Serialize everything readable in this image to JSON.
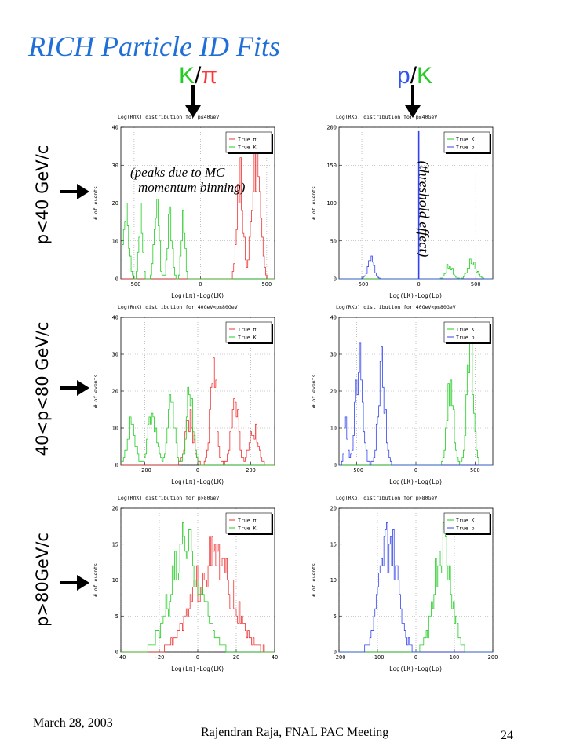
{
  "slide": {
    "title": "RICH Particle ID Fits",
    "col_headers": [
      {
        "a": "K",
        "sep": "/",
        "b": "π",
        "color_a": "#22cc22",
        "color_b": "#ff3333"
      },
      {
        "a": "p",
        "sep": "/",
        "b": "K",
        "color_a": "#3355ee",
        "color_b": "#22cc22"
      }
    ],
    "row_labels": [
      "p<40 GeV/c",
      "40<p<80 GeV/c",
      "p>80GeV/c"
    ],
    "annotations": {
      "peaks_line1": "(peaks due to MC",
      "peaks_line2": "momentum binning)",
      "threshold": "(threshold effect)"
    },
    "footer": {
      "date": "March 28, 2003",
      "author": "Rajendran Raja, FNAL PAC Meeting",
      "page": "24"
    }
  },
  "colors": {
    "pi": "#ee3333",
    "K": "#22cc22",
    "p": "#3344ee",
    "title": "#1f6fd6"
  },
  "chart_data": [
    {
      "type": "area",
      "title": "Log(RπK) distribution for p≤40GeV",
      "xlabel": "Log(Lπ)-Log(LK)",
      "ylabel": "# of events",
      "xlim": [
        -600,
        560
      ],
      "ylim": [
        0,
        40
      ],
      "xticks": [
        -500,
        0,
        500
      ],
      "yticks": [
        0,
        10,
        20,
        30,
        40
      ],
      "legend": "top-right",
      "series": [
        {
          "name": "True π",
          "color": "pi",
          "peaks": [
            [
              300,
              28,
              22
            ],
            [
              420,
              32,
              30
            ]
          ]
        },
        {
          "name": "True K",
          "color": "K",
          "peaks": [
            [
              -560,
              20,
              20
            ],
            [
              -450,
              18,
              14
            ],
            [
              -330,
              22,
              18
            ],
            [
              -230,
              16,
              16
            ],
            [
              -130,
              15,
              14
            ]
          ]
        }
      ]
    },
    {
      "type": "area",
      "title": "Log(RKp) distribution for p≤40GeV",
      "xlabel": "Log(LK)-Log(Lp)",
      "ylabel": "# of events",
      "xlim": [
        -700,
        650
      ],
      "ylim": [
        0,
        200
      ],
      "xticks": [
        -500,
        0,
        500
      ],
      "yticks": [
        0,
        50,
        100,
        150,
        200
      ],
      "legend": "top-right",
      "series": [
        {
          "name": "True K",
          "color": "K",
          "peaks": [
            [
              270,
              18,
              30
            ],
            [
              470,
              25,
              35
            ]
          ]
        },
        {
          "name": "True p",
          "color": "p",
          "peaks": [
            [
              -420,
              25,
              28
            ]
          ],
          "spike": [
            0,
            195
          ]
        }
      ]
    },
    {
      "type": "area",
      "title": "Log(RπK) distribution for 40GeV<p≤80GeV",
      "xlabel": "Log(Lπ)-Log(LK)",
      "ylabel": "# of events",
      "xlim": [
        -290,
        290
      ],
      "ylim": [
        0,
        40
      ],
      "xticks": [
        -200,
        0,
        200
      ],
      "yticks": [
        0,
        10,
        20,
        30,
        40
      ],
      "legend": "top-right",
      "series": [
        {
          "name": "True π",
          "color": "pi",
          "peaks": [
            [
              -30,
              12,
              16
            ],
            [
              60,
              27,
              12
            ],
            [
              140,
              18,
              14
            ],
            [
              210,
              10,
              16
            ]
          ]
        },
        {
          "name": "True K",
          "color": "K",
          "peaks": [
            [
              -250,
              10,
              16
            ],
            [
              -170,
              14,
              16
            ],
            [
              -100,
              20,
              12
            ],
            [
              -30,
              20,
              12
            ]
          ]
        }
      ]
    },
    {
      "type": "area",
      "title": "Log(RKp) distribution for 40GeV<p≤80GeV",
      "xlabel": "Log(LK)-Log(Lp)",
      "ylabel": "# of events",
      "xlim": [
        -650,
        650
      ],
      "ylim": [
        0,
        40
      ],
      "xticks": [
        -500,
        0,
        500
      ],
      "yticks": [
        0,
        10,
        20,
        30,
        40
      ],
      "legend": "top-right",
      "series": [
        {
          "name": "True K",
          "color": "K",
          "peaks": [
            [
              290,
              22,
              28
            ],
            [
              460,
              32,
              26
            ]
          ]
        },
        {
          "name": "True p",
          "color": "p",
          "peaks": [
            [
              -590,
              10,
              16
            ],
            [
              -480,
              27,
              30
            ],
            [
              -290,
              25,
              30
            ]
          ]
        }
      ]
    },
    {
      "type": "area",
      "title": "Log(RπK) distribution for p>80GeV",
      "xlabel": "Log(Lπ)-Log(LK)",
      "ylabel": "# of events",
      "xlim": [
        -40,
        40
      ],
      "ylim": [
        0,
        20
      ],
      "xticks": [
        -40,
        -20,
        0,
        20,
        40
      ],
      "yticks": [
        0,
        5,
        10,
        15,
        20
      ],
      "legend": "top-right",
      "series": [
        {
          "name": "True π",
          "color": "pi",
          "peaks": [
            [
              8,
              13,
              10
            ]
          ]
        },
        {
          "name": "True K",
          "color": "K",
          "peaks": [
            [
              -6,
              14,
              8
            ]
          ]
        }
      ]
    },
    {
      "type": "area",
      "title": "Log(RKp) distribution for p>80GeV",
      "xlabel": "Log(LK)-Log(Lp)",
      "ylabel": "# of events",
      "xlim": [
        -200,
        200
      ],
      "ylim": [
        0,
        20
      ],
      "xticks": [
        -200,
        -100,
        0,
        100,
        200
      ],
      "yticks": [
        0,
        5,
        10,
        15,
        20
      ],
      "legend": "top-right",
      "series": [
        {
          "name": "True K",
          "color": "K",
          "peaks": [
            [
              70,
              15,
              22
            ]
          ]
        },
        {
          "name": "True p",
          "color": "p",
          "peaks": [
            [
              -70,
              15,
              24
            ]
          ]
        }
      ]
    }
  ]
}
